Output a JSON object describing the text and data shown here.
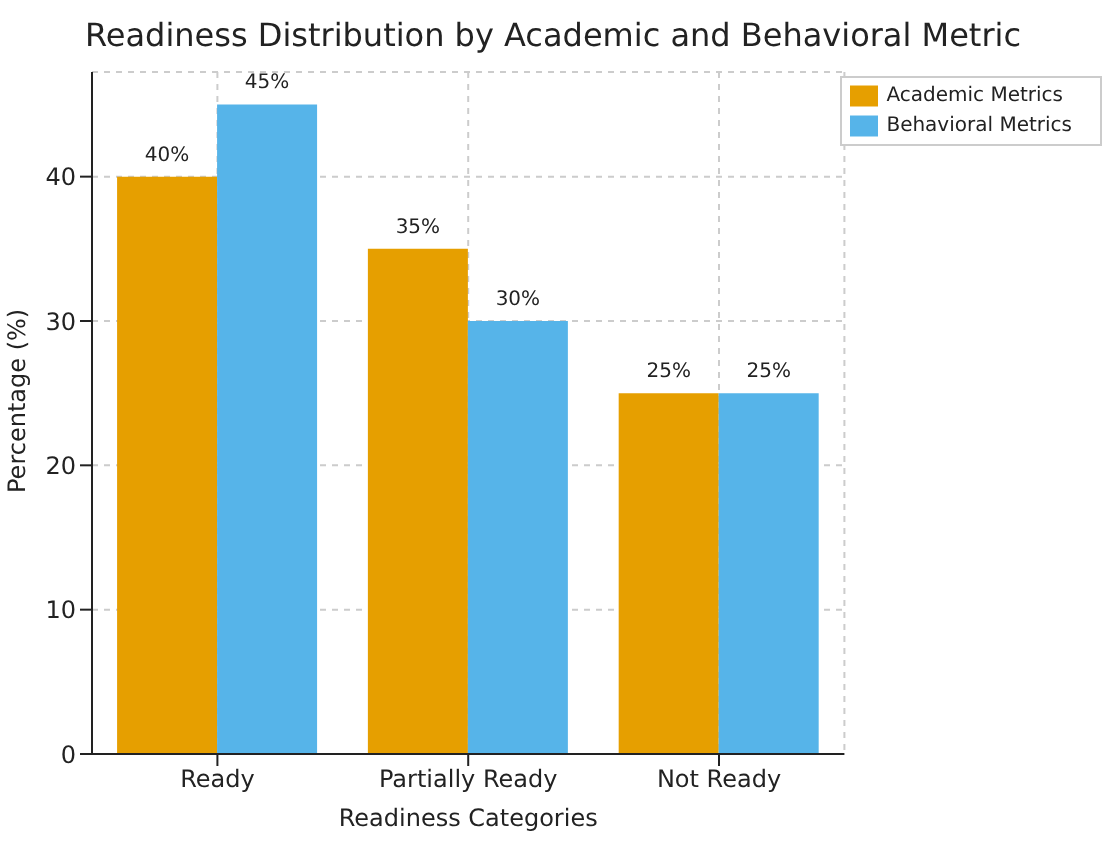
{
  "chart_data": {
    "type": "bar",
    "title": "Readiness Distribution by Academic and Behavioral Metric",
    "xlabel": "Readiness Categories",
    "ylabel": "Percentage (%)",
    "categories": [
      "Ready",
      "Partially Ready",
      "Not Ready"
    ],
    "series": [
      {
        "name": "Academic Metrics",
        "color": "#e69f00",
        "values": [
          40,
          35,
          25
        ],
        "value_labels": [
          "40%",
          "35%",
          "25%"
        ]
      },
      {
        "name": "Behavioral Metrics",
        "color": "#56b4e9",
        "values": [
          45,
          30,
          25
        ],
        "value_labels": [
          "45%",
          "30%",
          "25%"
        ]
      }
    ],
    "ylim": [
      0,
      47.25
    ],
    "yticks": [
      0,
      10,
      20,
      30,
      40
    ],
    "grid": true,
    "legend": "top right"
  }
}
